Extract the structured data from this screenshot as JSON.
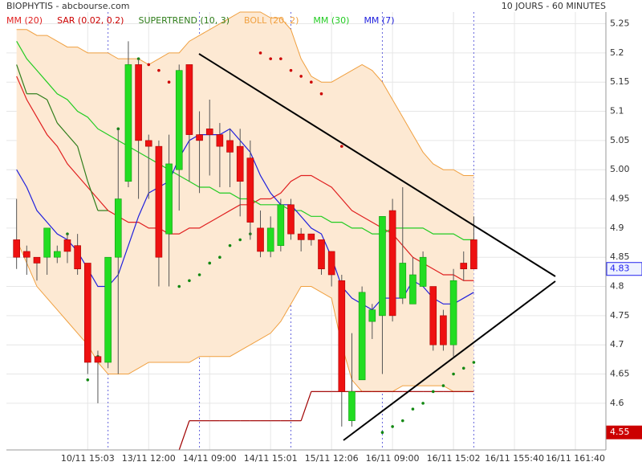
{
  "chart_data": {
    "type": "candlestick",
    "title": "BIOPHYTIS - abcbourse.com",
    "subtitle": "10 JOURS - 60 MINUTES",
    "indicator_labels": [
      {
        "text": "MM (20)",
        "color": "#e02020"
      },
      {
        "text": "SAR (0.02, 0.2)",
        "color": "#cc0000"
      },
      {
        "text": "SUPERTREND (10, 3)",
        "color": "#2e7d1a"
      },
      {
        "text": "BOLL (20, 2)",
        "color": "#f0a040"
      },
      {
        "text": "MM (30)",
        "color": "#22cc22"
      },
      {
        "text": "MM (7)",
        "color": "#2020dd"
      }
    ],
    "xlim": [
      -1,
      58
    ],
    "xticks": [
      {
        "value": 7,
        "label": "10/11 15:03"
      },
      {
        "value": 13,
        "label": "13/11 12:00"
      },
      {
        "value": 19,
        "label": "14/11 09:00"
      },
      {
        "value": 25,
        "label": "14/11 15:01"
      },
      {
        "value": 31,
        "label": "15/11 12:06"
      },
      {
        "value": 37,
        "label": "16/11 09:00"
      },
      {
        "value": 43,
        "label": "16/11 15:02"
      },
      {
        "value": 49,
        "label": "16/11 155:40"
      },
      {
        "value": 55,
        "label": "16/11 161:40"
      }
    ],
    "day_breaks": [
      9,
      18,
      27,
      36,
      45
    ],
    "ylim": [
      4.52,
      5.27
    ],
    "yticks": [
      4.6,
      4.65,
      4.7,
      4.75,
      4.8,
      4.85,
      4.9,
      4.95,
      {
        "value": 5,
        "label": "5.00"
      },
      5.05,
      5.1,
      5.15,
      5.2,
      5.25
    ],
    "grid": true,
    "up_color": "#22dd22",
    "down_color": "#ee1111",
    "open": [
      4.88,
      4.86,
      4.85,
      4.85,
      4.85,
      4.88,
      4.87,
      4.84,
      4.68,
      4.67,
      4.85,
      4.98,
      5.18,
      5.05,
      5.04,
      4.89,
      5.0,
      5.18,
      5.06,
      5.07,
      5.06,
      5.05,
      5.04,
      5.02,
      4.9,
      4.86,
      4.87,
      4.94,
      4.89,
      4.89,
      4.88,
      4.86,
      4.81,
      4.57,
      4.64,
      4.74,
      4.75,
      4.93,
      4.78,
      4.77,
      4.8,
      4.8,
      4.75,
      4.7,
      4.84,
      4.88
    ],
    "high": [
      4.95,
      4.87,
      4.85,
      4.9,
      4.87,
      4.89,
      4.89,
      4.84,
      4.69,
      4.85,
      5.07,
      5.22,
      5.19,
      5.06,
      5.05,
      5.06,
      5.18,
      5.18,
      5.1,
      5.12,
      5.08,
      5.07,
      5.07,
      5.05,
      4.93,
      4.92,
      4.95,
      4.95,
      4.9,
      4.89,
      4.88,
      4.86,
      4.82,
      4.72,
      4.8,
      4.77,
      4.92,
      4.95,
      4.97,
      4.85,
      4.86,
      4.8,
      4.76,
      4.83,
      4.86,
      4.92
    ],
    "low": [
      4.83,
      4.82,
      4.81,
      4.82,
      4.84,
      4.84,
      4.82,
      4.65,
      4.6,
      4.66,
      4.65,
      4.97,
      4.95,
      4.95,
      4.8,
      4.8,
      4.93,
      4.98,
      4.96,
      4.99,
      4.97,
      4.97,
      4.92,
      4.88,
      4.85,
      4.85,
      4.86,
      4.88,
      4.86,
      4.87,
      4.82,
      4.8,
      4.56,
      4.56,
      4.64,
      4.71,
      4.65,
      4.74,
      4.77,
      4.77,
      4.8,
      4.69,
      4.69,
      4.68,
      4.81,
      4.83
    ],
    "close": [
      4.85,
      4.85,
      4.84,
      4.9,
      4.86,
      4.86,
      4.83,
      4.67,
      4.67,
      4.85,
      4.95,
      5.18,
      5.05,
      5.04,
      4.85,
      5.01,
      5.17,
      5.06,
      5.05,
      5.06,
      5.04,
      5.03,
      4.98,
      4.91,
      4.86,
      4.9,
      4.94,
      4.89,
      4.88,
      4.88,
      4.83,
      4.82,
      4.62,
      4.62,
      4.79,
      4.76,
      4.92,
      4.75,
      4.84,
      4.82,
      4.85,
      4.7,
      4.7,
      4.81,
      4.83,
      4.83
    ],
    "boll_upper": [
      5.24,
      5.24,
      5.23,
      5.23,
      5.22,
      5.21,
      5.21,
      5.2,
      5.2,
      5.2,
      5.19,
      5.19,
      5.19,
      5.18,
      5.19,
      5.2,
      5.2,
      5.22,
      5.23,
      5.24,
      5.25,
      5.26,
      5.27,
      5.27,
      5.27,
      5.26,
      5.26,
      5.24,
      5.19,
      5.16,
      5.15,
      5.15,
      5.16,
      5.17,
      5.18,
      5.17,
      5.15,
      5.12,
      5.09,
      5.06,
      5.03,
      5.01,
      5.0,
      5.0,
      4.99,
      4.99
    ],
    "boll_lower": [
      4.88,
      4.84,
      4.8,
      4.78,
      4.76,
      4.74,
      4.72,
      4.7,
      4.67,
      4.65,
      4.65,
      4.65,
      4.66,
      4.67,
      4.67,
      4.67,
      4.67,
      4.67,
      4.68,
      4.68,
      4.68,
      4.68,
      4.69,
      4.7,
      4.71,
      4.72,
      4.74,
      4.77,
      4.8,
      4.8,
      4.79,
      4.78,
      4.7,
      4.64,
      4.62,
      4.62,
      4.62,
      4.62,
      4.63,
      4.63,
      4.63,
      4.63,
      4.63,
      4.62,
      4.62,
      4.62
    ],
    "boll_color": "#f0a040",
    "boll_fill": "#fde9d3",
    "series": [
      {
        "name": "MM (20)",
        "color": "#e02020",
        "values": [
          5.16,
          5.12,
          5.09,
          5.06,
          5.04,
          5.01,
          4.99,
          4.97,
          4.95,
          4.93,
          4.92,
          4.91,
          4.91,
          4.9,
          4.9,
          4.89,
          4.89,
          4.9,
          4.9,
          4.91,
          4.92,
          4.93,
          4.94,
          4.94,
          4.95,
          4.95,
          4.96,
          4.98,
          4.99,
          4.99,
          4.98,
          4.97,
          4.95,
          4.93,
          4.92,
          4.91,
          4.9,
          4.89,
          4.87,
          4.85,
          4.84,
          4.83,
          4.82,
          4.82,
          4.81,
          4.81
        ]
      },
      {
        "name": "MM (30)",
        "color": "#22cc22",
        "values": [
          5.22,
          5.19,
          5.17,
          5.15,
          5.13,
          5.12,
          5.1,
          5.09,
          5.07,
          5.06,
          5.05,
          5.04,
          5.03,
          5.02,
          5.01,
          5.0,
          4.99,
          4.98,
          4.97,
          4.97,
          4.96,
          4.96,
          4.95,
          4.95,
          4.94,
          4.94,
          4.94,
          4.93,
          4.93,
          4.92,
          4.92,
          4.91,
          4.91,
          4.9,
          4.9,
          4.89,
          4.89,
          4.9,
          4.9,
          4.9,
          4.9,
          4.89,
          4.89,
          4.89,
          4.88,
          4.88
        ]
      },
      {
        "name": "MM (7)",
        "color": "#2020dd",
        "values": [
          5.0,
          4.97,
          4.93,
          4.91,
          4.89,
          4.88,
          4.86,
          4.83,
          4.8,
          4.8,
          4.82,
          4.87,
          4.92,
          4.96,
          4.97,
          4.98,
          5.02,
          5.05,
          5.06,
          5.06,
          5.06,
          5.07,
          5.05,
          5.03,
          4.99,
          4.96,
          4.94,
          4.94,
          4.92,
          4.9,
          4.89,
          4.85,
          4.8,
          4.78,
          4.77,
          4.76,
          4.78,
          4.78,
          4.78,
          4.81,
          4.8,
          4.78,
          4.77,
          4.77,
          4.78,
          4.79
        ]
      }
    ],
    "supertrend": {
      "color_above": "#2e7d1a",
      "color_below": "#a00000",
      "values": [
        5.18,
        5.13,
        5.13,
        5.12,
        5.08,
        5.06,
        5.04,
        4.98,
        4.93,
        4.93,
        null,
        null,
        null,
        null,
        null,
        null,
        4.52,
        4.57,
        4.57,
        4.57,
        4.57,
        4.57,
        4.57,
        4.57,
        4.57,
        4.57,
        4.57,
        4.57,
        4.57,
        4.62,
        4.62,
        4.62,
        4.62,
        4.62,
        4.62,
        4.62,
        4.62,
        4.62,
        4.62,
        4.62,
        4.62,
        4.62,
        4.62,
        4.62,
        4.62,
        4.62
      ]
    },
    "sar": {
      "color_above": "#cc0000",
      "color_below": "#118811",
      "values": [
        null,
        null,
        null,
        null,
        null,
        4.89,
        null,
        4.64,
        4.68,
        null,
        5.07,
        5.11,
        5.19,
        5.18,
        5.17,
        5.15,
        4.8,
        4.81,
        4.82,
        4.84,
        4.85,
        4.87,
        4.88,
        4.89,
        5.2,
        5.19,
        5.19,
        5.17,
        5.16,
        5.15,
        5.13,
        null,
        5.04,
        null,
        null,
        null,
        4.55,
        4.56,
        4.57,
        4.59,
        4.6,
        4.62,
        4.63,
        4.65,
        4.66,
        4.67
      ]
    },
    "last_price": {
      "value": 4.83,
      "color": "#2222ee"
    },
    "supertrend_price": {
      "value": 4.55,
      "color": "#cc0000"
    }
  }
}
